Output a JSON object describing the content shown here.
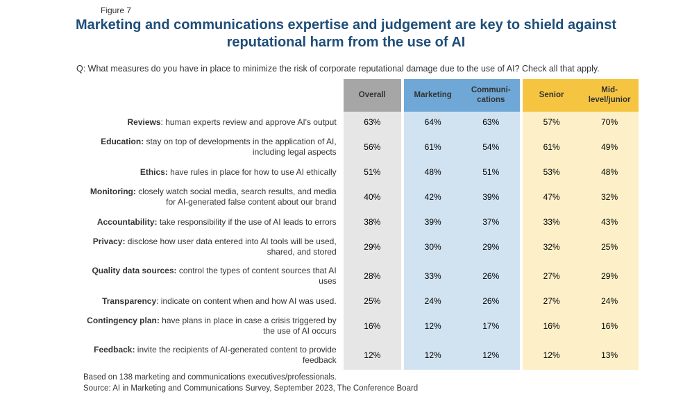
{
  "figure_label": "Figure 7",
  "title": "Marketing and communications expertise and judgement are key to shield against reputational harm from the use of AI",
  "question": "Q: What measures do you have in place to minimize the risk of corporate reputational damage due to the use of AI? Check all that apply.",
  "colors": {
    "title": "#1f4e79",
    "background": "#ffffff",
    "overall_header": "#a6a6a6",
    "overall_body": "#e6e6e6",
    "dept_header": "#6fa8d6",
    "dept_body": "#d1e3f1",
    "senior_header": "#f5c542",
    "senior_body": "#fdefc7"
  },
  "typography": {
    "title_fontsize_pt": 20,
    "title_weight": "bold",
    "body_fontsize_pt": 12,
    "footnote_fontsize_pt": 11.5,
    "font_family": "Arial"
  },
  "columns": [
    {
      "key": "overall",
      "label": "Overall",
      "header_bg": "#a6a6a6",
      "body_bg": "#e6e6e6"
    },
    {
      "key": "marketing",
      "label": "Marketing",
      "header_bg": "#6fa8d6",
      "body_bg": "#d1e3f1"
    },
    {
      "key": "comm",
      "label": "Communi-\ncations",
      "header_bg": "#6fa8d6",
      "body_bg": "#d1e3f1"
    },
    {
      "key": "senior",
      "label": "Senior",
      "header_bg": "#f5c542",
      "body_bg": "#fdefc7"
    },
    {
      "key": "mid",
      "label": "Mid-\nlevel/junior",
      "header_bg": "#f5c542",
      "body_bg": "#fdefc7"
    }
  ],
  "rows": [
    {
      "bold": "Reviews",
      "rest": ": human experts review and approve AI's output",
      "vals": [
        "63%",
        "64%",
        "63%",
        "57%",
        "70%"
      ]
    },
    {
      "bold": "Education:",
      "rest": " stay on top of developments in the application of AI, including legal aspects",
      "vals": [
        "56%",
        "61%",
        "54%",
        "61%",
        "49%"
      ]
    },
    {
      "bold": "Ethics:",
      "rest": " have rules in place for how to use AI ethically",
      "vals": [
        "51%",
        "48%",
        "51%",
        "53%",
        "48%"
      ]
    },
    {
      "bold": "Monitoring:",
      "rest": " closely watch social media, search results, and media for AI-generated false content about our brand",
      "vals": [
        "40%",
        "42%",
        "39%",
        "47%",
        "32%"
      ]
    },
    {
      "bold": "Accountability:",
      "rest": " take responsibility if the use of AI leads to errors",
      "vals": [
        "38%",
        "39%",
        "37%",
        "33%",
        "43%"
      ]
    },
    {
      "bold": "Privacy:",
      "rest": " disclose how user data entered into AI tools will be used, shared, and stored",
      "vals": [
        "29%",
        "30%",
        "29%",
        "32%",
        "25%"
      ]
    },
    {
      "bold": "Quality data sources:",
      "rest": " control the types of content sources that AI uses",
      "vals": [
        "28%",
        "33%",
        "26%",
        "27%",
        "29%"
      ]
    },
    {
      "bold": "Transparency",
      "rest": ": indicate on content when and how AI was used.",
      "vals": [
        "25%",
        "24%",
        "26%",
        "27%",
        "24%"
      ]
    },
    {
      "bold": "Contingency plan:",
      "rest": " have plans in place in case a crisis triggered by the use of AI occurs",
      "vals": [
        "16%",
        "12%",
        "17%",
        "16%",
        "16%"
      ]
    },
    {
      "bold": "Feedback:",
      "rest": " invite the recipients of AI-generated content to provide feedback",
      "vals": [
        "12%",
        "12%",
        "12%",
        "12%",
        "13%"
      ]
    }
  ],
  "footnote1": "Based on 138 marketing and communications executives/professionals.",
  "footnote2": "Source: AI in Marketing and Communications Survey, September 2023, The Conference Board"
}
